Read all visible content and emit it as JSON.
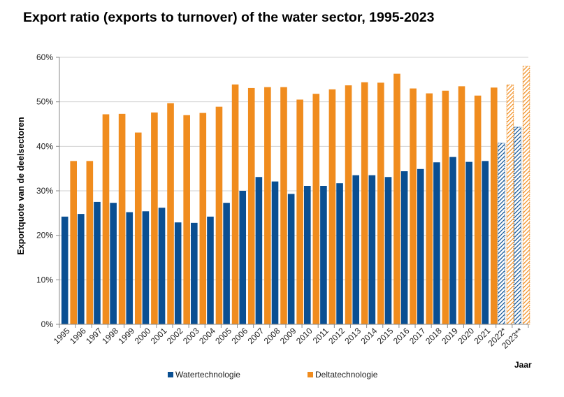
{
  "chart_data": {
    "type": "bar",
    "title": "Export ratio (exports to turnover) of the water sector, 1995-2023",
    "xlabel": "Jaar",
    "ylabel": "Exportquote van de deelsectoren",
    "ylim": [
      0,
      60
    ],
    "ytick_labels": [
      "0%",
      "10%",
      "20%",
      "30%",
      "40%",
      "50%",
      "60%"
    ],
    "categories": [
      "1995",
      "1996",
      "1997",
      "1998",
      "1999",
      "2000",
      "2001",
      "2002",
      "2003",
      "2004",
      "2005",
      "2006",
      "2007",
      "2008",
      "2009",
      "2010",
      "2011",
      "2012",
      "2013",
      "2014",
      "2015",
      "2016",
      "2017",
      "2018",
      "2019",
      "2020",
      "2021",
      "2022*",
      "2023**"
    ],
    "series": [
      {
        "name": "Watertechnologie",
        "color": "#0a4f92",
        "values": [
          24.2,
          24.8,
          27.5,
          27.3,
          25.2,
          25.4,
          26.2,
          22.9,
          22.8,
          24.2,
          27.3,
          30.0,
          33.1,
          32.1,
          29.3,
          31.1,
          31.1,
          31.7,
          33.5,
          33.5,
          33.1,
          34.4,
          34.9,
          36.4,
          37.6,
          36.5,
          36.7,
          40.7,
          44.3
        ]
      },
      {
        "name": "Deltatechnologie",
        "color": "#f08c1e",
        "values": [
          36.7,
          36.7,
          47.2,
          47.3,
          43.1,
          47.6,
          49.7,
          47.0,
          47.5,
          48.9,
          53.9,
          53.1,
          53.3,
          53.3,
          50.5,
          51.8,
          52.8,
          53.7,
          54.4,
          54.3,
          56.3,
          53.0,
          51.9,
          52.5,
          53.5,
          51.4,
          53.2,
          53.8,
          58.0
        ]
      }
    ],
    "projected_categories": [
      "2022*",
      "2023**"
    ],
    "grid": true,
    "legend_position": "bottom"
  }
}
